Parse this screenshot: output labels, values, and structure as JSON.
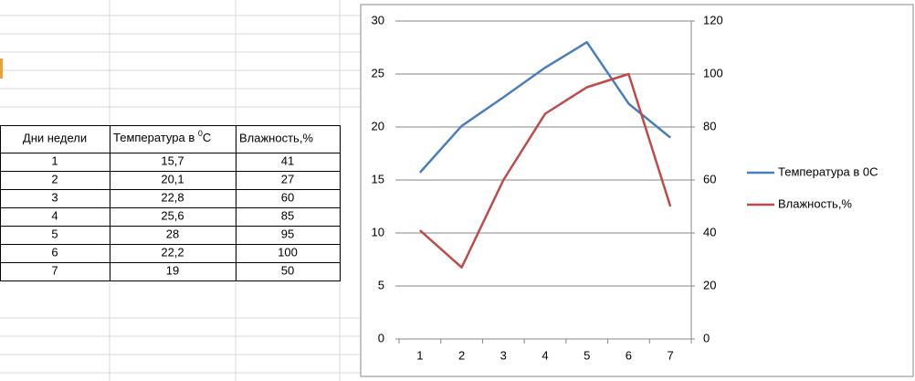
{
  "table": {
    "header": [
      "Дни недели",
      {
        "text": "Температура в ",
        "sup": "0",
        "after": "C"
      },
      "Влажность,%"
    ],
    "rows": [
      [
        "1",
        "15,7",
        "41"
      ],
      [
        "2",
        "20,1",
        "27"
      ],
      [
        "3",
        "22,8",
        "60"
      ],
      [
        "4",
        "25,6",
        "85"
      ],
      [
        "5",
        "28",
        "95"
      ],
      [
        "6",
        "22,2",
        "100"
      ],
      [
        "7",
        "19",
        "50"
      ]
    ]
  },
  "chart_data": {
    "type": "line",
    "categories": [
      "1",
      "2",
      "3",
      "4",
      "5",
      "6",
      "7"
    ],
    "series": [
      {
        "name": "Температура в 0С",
        "color": "#4a7ebb",
        "values": [
          15.7,
          20.1,
          22.8,
          25.6,
          28,
          22.2,
          19
        ]
      },
      {
        "name": "Влажность,%",
        "color": "#be4b48",
        "axis": "y2",
        "values": [
          41,
          27,
          60,
          85,
          95,
          100,
          50
        ]
      }
    ],
    "ylim": [
      0,
      30
    ],
    "yticks": [
      0,
      5,
      10,
      15,
      20,
      25,
      30
    ],
    "y2lim": [
      0,
      120
    ],
    "y2ticks": [
      0,
      20,
      40,
      60,
      80,
      100,
      120
    ],
    "grid": true,
    "legend": "right"
  }
}
